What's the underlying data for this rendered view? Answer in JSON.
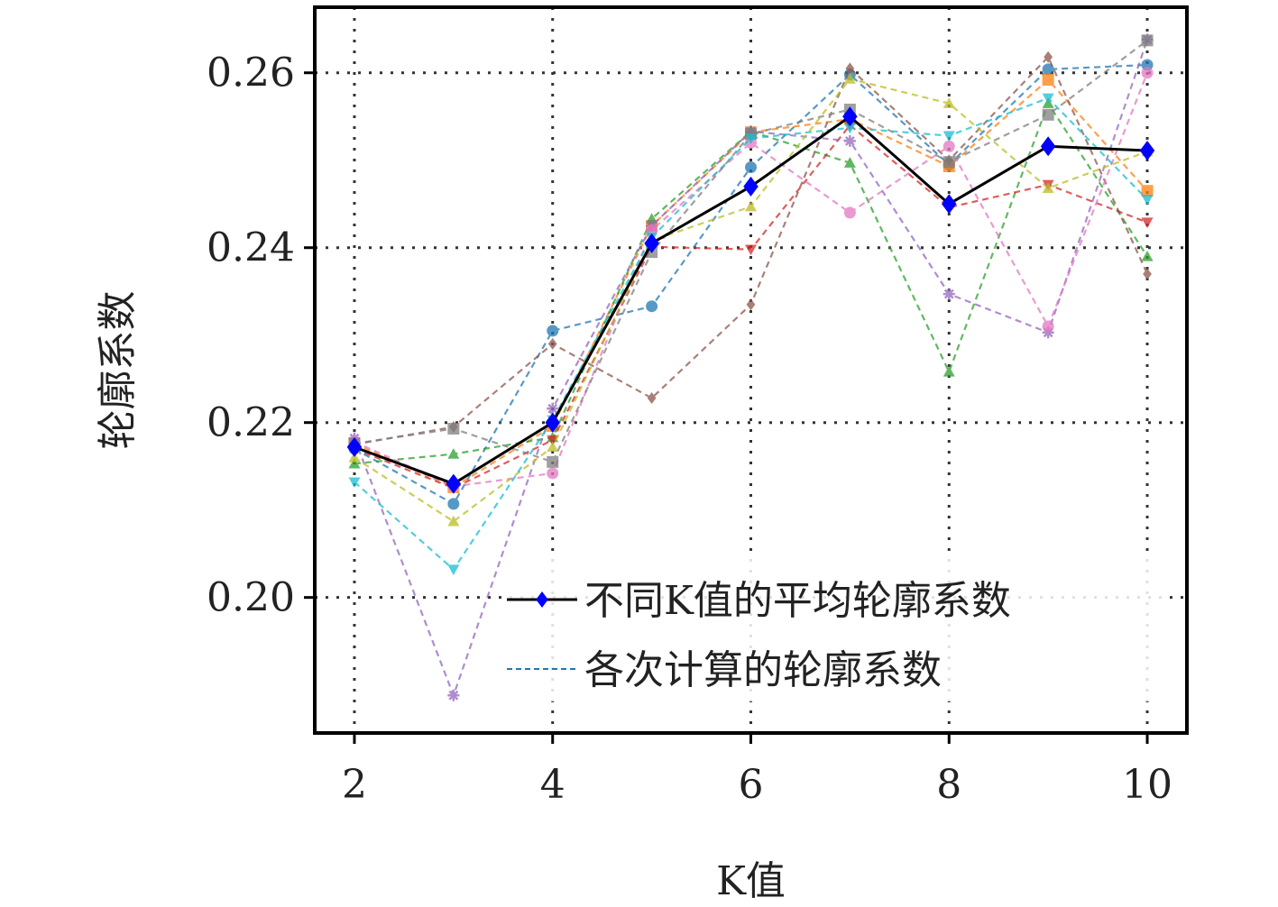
{
  "chart_data": {
    "type": "line",
    "xlabel": "K值",
    "ylabel": "轮廓系数",
    "xticks": [
      2,
      4,
      6,
      8,
      10
    ],
    "yticks": [
      "0.20",
      "0.22",
      "0.24",
      "0.26"
    ],
    "xlim": [
      1.6,
      10.4
    ],
    "ylim": [
      0.1845,
      0.2675
    ],
    "grid": true,
    "legend_position": "lower-right",
    "x": [
      2,
      3,
      4,
      5,
      6,
      7,
      8,
      9,
      10
    ],
    "mean_series": {
      "name": "不同K值的平均轮廓系数",
      "color": "#000000",
      "marker_color": "#0000ff",
      "values": [
        0.2172,
        0.213,
        0.22,
        0.2405,
        0.247,
        0.255,
        0.245,
        0.2516,
        0.2511
      ]
    },
    "runs_label": "各次计算的轮廓系数",
    "runs": [
      {
        "color": "#1f77b4",
        "values": [
          0.217,
          0.2107,
          0.2305,
          0.2333,
          0.2492,
          0.2598,
          0.2495,
          0.2604,
          0.2609
        ]
      },
      {
        "color": "#ff7f0e",
        "values": [
          0.2176,
          0.2126,
          0.2196,
          0.2425,
          0.2532,
          0.2547,
          0.2493,
          0.2592,
          0.2465
        ]
      },
      {
        "color": "#2ca02c",
        "values": [
          0.2153,
          0.2164,
          0.2183,
          0.2433,
          0.2533,
          0.2497,
          0.2258,
          0.2565,
          0.239
        ]
      },
      {
        "color": "#d62728",
        "values": [
          0.217,
          0.2125,
          0.218,
          0.2401,
          0.2398,
          0.254,
          0.2446,
          0.2472,
          0.2429
        ]
      },
      {
        "color": "#9467bd",
        "values": [
          0.2182,
          0.1888,
          0.2216,
          0.2425,
          0.2533,
          0.2522,
          0.2347,
          0.2303,
          0.2638
        ]
      },
      {
        "color": "#8c564b",
        "values": [
          0.2175,
          0.2195,
          0.229,
          0.2228,
          0.2335,
          0.2605,
          0.25,
          0.2618,
          0.237
        ]
      },
      {
        "color": "#e377c2",
        "values": [
          0.2178,
          0.2127,
          0.2142,
          0.242,
          0.252,
          0.244,
          0.2516,
          0.231,
          0.26
        ]
      },
      {
        "color": "#7f7f7f",
        "values": [
          0.2176,
          0.2193,
          0.2155,
          0.2395,
          0.253,
          0.2558,
          0.2498,
          0.2552,
          0.2637
        ]
      },
      {
        "color": "#bcbd22",
        "values": [
          0.216,
          0.2087,
          0.2172,
          0.2408,
          0.2447,
          0.2593,
          0.2565,
          0.2468,
          0.251
        ]
      },
      {
        "color": "#17becf",
        "values": [
          0.2132,
          0.2032,
          0.2203,
          0.2412,
          0.2525,
          0.2537,
          0.2528,
          0.2571,
          0.2455
        ]
      }
    ]
  }
}
